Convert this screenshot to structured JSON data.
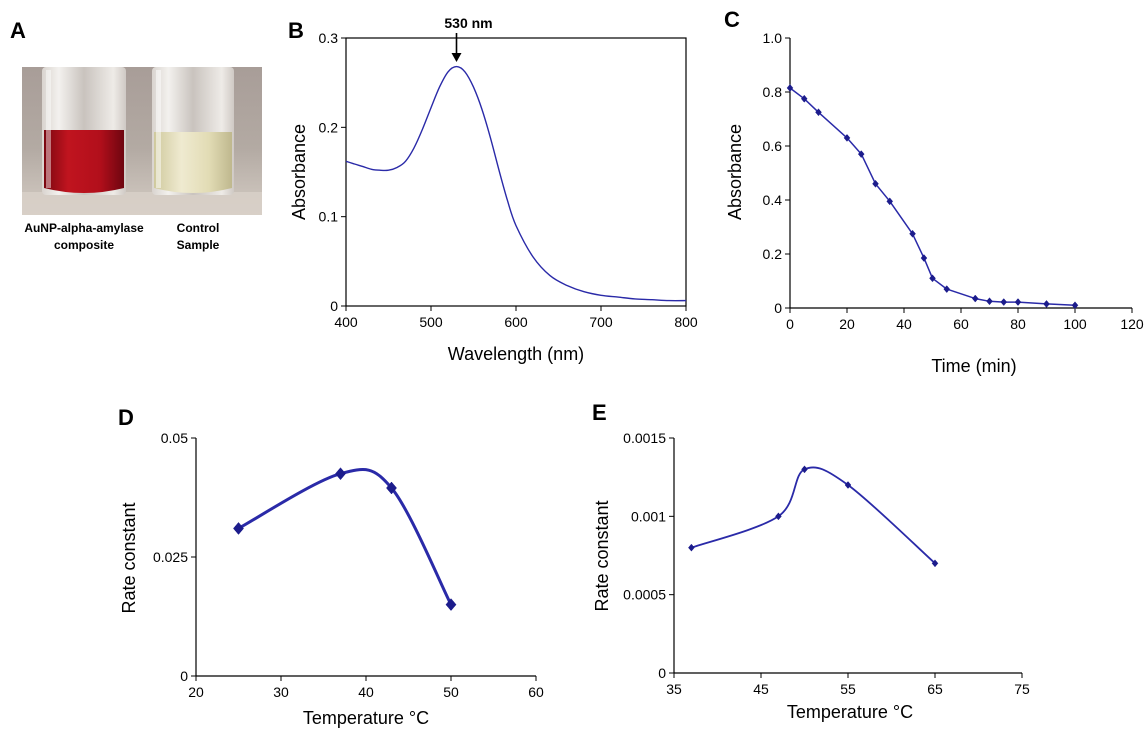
{
  "panels": {
    "A": {
      "letter": "A",
      "captions": [
        {
          "line1": "AuNP-alpha-amylase",
          "line2": "composite"
        },
        {
          "line1": "Control",
          "line2": "Sample"
        }
      ],
      "tube_colors": {
        "gold": "#b0101c",
        "control": "#e6e1b6"
      }
    },
    "B": {
      "letter": "B",
      "annotation": "530 nm"
    },
    "C": {
      "letter": "C"
    },
    "D": {
      "letter": "D"
    },
    "E": {
      "letter": "E"
    }
  },
  "colors": {
    "series": "#2a2aa8"
  },
  "chart_data": [
    {
      "panel": "B",
      "type": "line",
      "xlabel": "Wavelength (nm)",
      "ylabel": "Absorbance",
      "xlim": [
        400,
        800
      ],
      "ylim": [
        0,
        0.3
      ],
      "xticks": [
        400,
        500,
        600,
        700,
        800
      ],
      "yticks": [
        0,
        0.1,
        0.2,
        0.3
      ],
      "ytick_labels": [
        "0",
        "0.1",
        "0.2",
        "0.3"
      ],
      "annotation": {
        "text": "530 nm",
        "x": 530
      },
      "series": [
        {
          "x": [
            400,
            410,
            420,
            430,
            440,
            450,
            460,
            470,
            480,
            490,
            500,
            510,
            520,
            530,
            540,
            550,
            560,
            570,
            580,
            590,
            600,
            620,
            640,
            660,
            680,
            700,
            720,
            740,
            760,
            780,
            800
          ],
          "y": [
            0.162,
            0.159,
            0.156,
            0.153,
            0.152,
            0.152,
            0.155,
            0.162,
            0.177,
            0.198,
            0.222,
            0.245,
            0.262,
            0.268,
            0.262,
            0.245,
            0.22,
            0.188,
            0.152,
            0.118,
            0.09,
            0.055,
            0.034,
            0.023,
            0.016,
            0.012,
            0.01,
            0.008,
            0.007,
            0.006,
            0.006
          ]
        }
      ]
    },
    {
      "panel": "C",
      "type": "line",
      "xlabel": "Time (min)",
      "ylabel": "Absorbance",
      "xlim": [
        0,
        120
      ],
      "ylim": [
        0,
        1.0
      ],
      "xticks": [
        0,
        20,
        40,
        60,
        80,
        100,
        120
      ],
      "yticks": [
        0,
        0.2,
        0.4,
        0.6,
        0.8,
        1.0
      ],
      "ytick_labels": [
        "0",
        "0.2",
        "0.4",
        "0.6",
        "0.8",
        "1.0"
      ],
      "markers": "diamond",
      "series": [
        {
          "x": [
            0,
            5,
            10,
            20,
            25,
            30,
            35,
            43,
            47,
            50,
            55,
            65,
            70,
            75,
            80,
            90,
            100
          ],
          "y": [
            0.815,
            0.775,
            0.725,
            0.63,
            0.57,
            0.46,
            0.395,
            0.275,
            0.185,
            0.11,
            0.07,
            0.035,
            0.025,
            0.022,
            0.022,
            0.015,
            0.01
          ]
        }
      ]
    },
    {
      "panel": "D",
      "type": "line",
      "xlabel": "Temperature °C",
      "ylabel": "Rate constant",
      "xlim": [
        20,
        60
      ],
      "ylim": [
        0,
        0.05
      ],
      "xticks": [
        20,
        30,
        40,
        50,
        60
      ],
      "yticks": [
        0,
        0.025,
        0.05
      ],
      "ytick_labels": [
        "0",
        "0.025",
        "0.05"
      ],
      "markers": "diamond",
      "series": [
        {
          "x": [
            25,
            37,
            43,
            50
          ],
          "y": [
            0.031,
            0.0425,
            0.0395,
            0.015
          ]
        }
      ]
    },
    {
      "panel": "E",
      "type": "line",
      "xlabel": "Temperature °C",
      "ylabel": "Rate constant",
      "xlim": [
        35,
        75
      ],
      "ylim": [
        0,
        0.0015
      ],
      "xticks": [
        35,
        45,
        55,
        65,
        75
      ],
      "yticks": [
        0,
        0.0005,
        0.001,
        0.0015
      ],
      "ytick_labels": [
        "0",
        "0.0005",
        "0.001",
        "0.0015"
      ],
      "markers": "diamond",
      "series": [
        {
          "x": [
            37,
            47,
            50,
            55,
            65
          ],
          "y": [
            0.0008,
            0.001,
            0.0013,
            0.0012,
            0.0007
          ]
        }
      ]
    }
  ]
}
